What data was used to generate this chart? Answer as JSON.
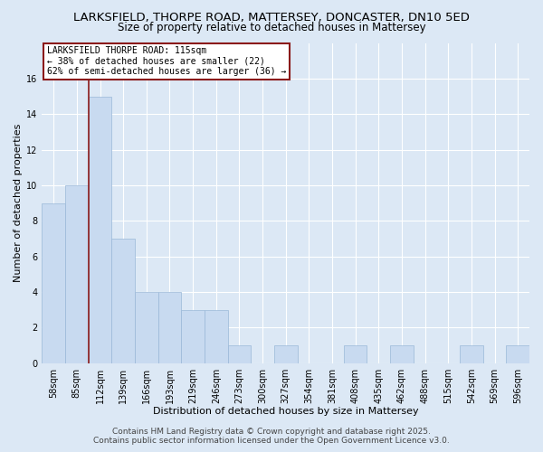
{
  "title": "LARKSFIELD, THORPE ROAD, MATTERSEY, DONCASTER, DN10 5ED",
  "subtitle": "Size of property relative to detached houses in Mattersey",
  "xlabel": "Distribution of detached houses by size in Mattersey",
  "ylabel": "Number of detached properties",
  "categories": [
    "58sqm",
    "85sqm",
    "112sqm",
    "139sqm",
    "166sqm",
    "193sqm",
    "219sqm",
    "246sqm",
    "273sqm",
    "300sqm",
    "327sqm",
    "354sqm",
    "381sqm",
    "408sqm",
    "435sqm",
    "462sqm",
    "488sqm",
    "515sqm",
    "542sqm",
    "569sqm",
    "596sqm"
  ],
  "values": [
    9,
    10,
    15,
    7,
    4,
    4,
    3,
    3,
    1,
    0,
    1,
    0,
    0,
    1,
    0,
    1,
    0,
    0,
    1,
    0,
    1
  ],
  "bar_color": "#c8daf0",
  "bar_edge_color": "#9ab8d8",
  "highlight_bar_index": 2,
  "highlight_line_color": "#8b1a1a",
  "annotation_box_text": "LARKSFIELD THORPE ROAD: 115sqm\n← 38% of detached houses are smaller (22)\n62% of semi-detached houses are larger (36) →",
  "footer_text": "Contains HM Land Registry data © Crown copyright and database right 2025.\nContains public sector information licensed under the Open Government Licence v3.0.",
  "ylim": [
    0,
    18
  ],
  "yticks": [
    0,
    2,
    4,
    6,
    8,
    10,
    12,
    14,
    16
  ],
  "background_color": "#dce8f5",
  "plot_background_color": "#dce8f5",
  "grid_color": "#ffffff",
  "title_fontsize": 9.5,
  "subtitle_fontsize": 8.5,
  "axis_label_fontsize": 8,
  "tick_fontsize": 7,
  "footer_fontsize": 6.5
}
